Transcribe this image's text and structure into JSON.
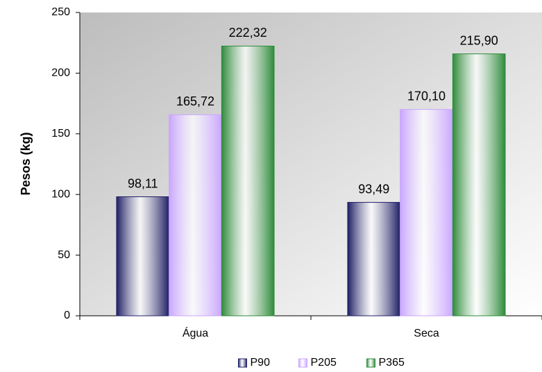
{
  "chart_data": {
    "type": "bar",
    "y_label": "Pesos (kg)",
    "categories": [
      "Água",
      "Seca"
    ],
    "series": [
      {
        "name": "P90",
        "color": "#1f1f66",
        "values": [
          98.11,
          93.49
        ],
        "value_labels": [
          "98,11",
          "93,49"
        ]
      },
      {
        "name": "P205",
        "color": "#c9a6ff",
        "values": [
          165.72,
          170.1
        ],
        "value_labels": [
          "165,72",
          "170,10"
        ]
      },
      {
        "name": "P365",
        "color": "#2e8b3a",
        "values": [
          222.32,
          215.9
        ],
        "value_labels": [
          "222,32",
          "215,90"
        ]
      }
    ],
    "ylim": [
      0,
      250
    ],
    "yticks": [
      0,
      50,
      100,
      150,
      200,
      250
    ],
    "legend": "bottom"
  }
}
